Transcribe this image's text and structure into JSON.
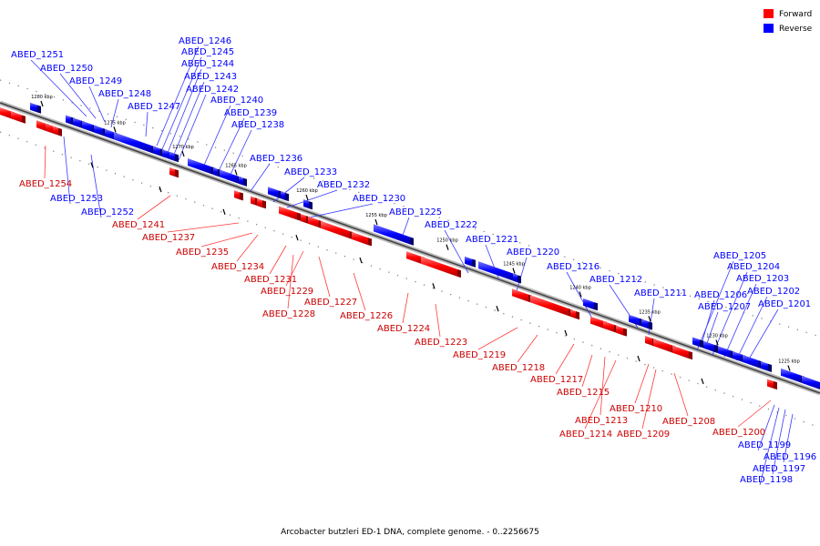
{
  "legend": [
    {
      "label": "Forward",
      "color": "#ff0000"
    },
    {
      "label": "Reverse",
      "color": "#0000ff"
    }
  ],
  "caption": "Arcobacter butzleri ED-1 DNA, complete genome. - 0..2256675",
  "kbp_ticks": [
    "1280 kbp",
    "1275 kbp",
    "1270 kbp",
    "1265 kbp",
    "1260 kbp",
    "1255 kbp",
    "1250 kbp",
    "1245 kbp",
    "1240 kbp",
    "1235 kbp",
    "1230 kbp",
    "1225 kbp"
  ],
  "reverse_labels": [
    "ABED_1251",
    "ABED_1250",
    "ABED_1249",
    "ABED_1248",
    "ABED_1247",
    "ABED_1246",
    "ABED_1245",
    "ABED_1244",
    "ABED_1243",
    "ABED_1242",
    "ABED_1240",
    "ABED_1239",
    "ABED_1238",
    "ABED_1236",
    "ABED_1233",
    "ABED_1232",
    "ABED_1230",
    "ABED_1225",
    "ABED_1222",
    "ABED_1221",
    "ABED_1220",
    "ABED_1216",
    "ABED_1212",
    "ABED_1211",
    "ABED_1205",
    "ABED_1204",
    "ABED_1203",
    "ABED_1206",
    "ABED_1202",
    "ABED_1207",
    "ABED_1201",
    "ABED_1253",
    "ABED_1252",
    "ABED_1199",
    "ABED_1196",
    "ABED_1197",
    "ABED_1198"
  ],
  "forward_labels": [
    "ABED_1254",
    "ABED_1241",
    "ABED_1237",
    "ABED_1235",
    "ABED_1234",
    "ABED_1231",
    "ABED_1229",
    "ABED_1227",
    "ABED_1228",
    "ABED_1226",
    "ABED_1224",
    "ABED_1223",
    "ABED_1219",
    "ABED_1218",
    "ABED_1217",
    "ABED_1215",
    "ABED_1210",
    "ABED_1213",
    "ABED_1208",
    "ABED_1214",
    "ABED_1209",
    "ABED_1200"
  ]
}
